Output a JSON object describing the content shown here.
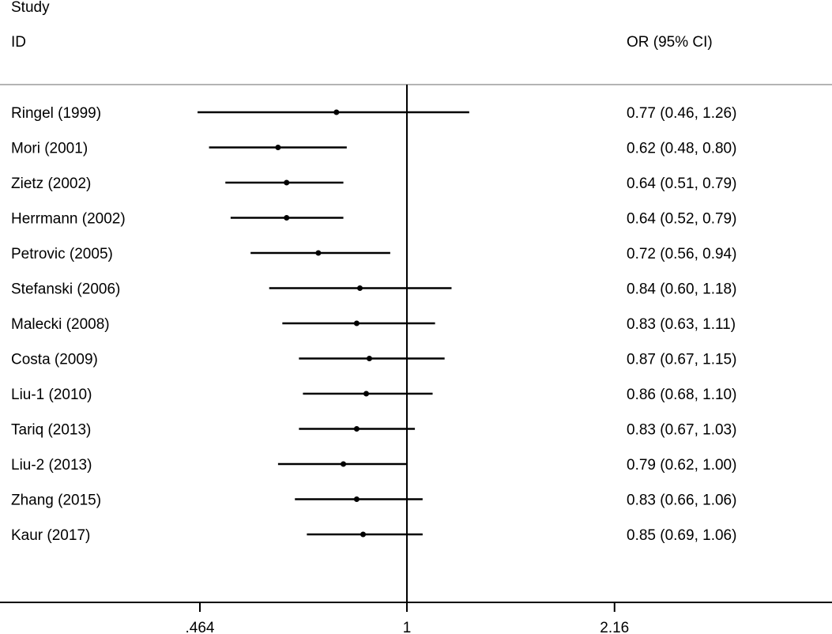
{
  "chart_data": {
    "type": "forest",
    "header": {
      "study_line1": "Study",
      "study_line2": "ID",
      "estimate_label": "OR (95% CI)"
    },
    "x_scale": "log",
    "xlim": [
      0.464,
      2.16
    ],
    "xticks": [
      0.464,
      1,
      2.16
    ],
    "xtick_labels": [
      ".464",
      "1",
      "2.16"
    ],
    "reference_line": 1,
    "studies": [
      {
        "label": "Ringel (1999)",
        "or": 0.77,
        "lo": 0.46,
        "hi": 1.26,
        "text": "0.77 (0.46, 1.26)"
      },
      {
        "label": "Mori (2001)",
        "or": 0.62,
        "lo": 0.48,
        "hi": 0.8,
        "text": "0.62 (0.48, 0.80)"
      },
      {
        "label": "Zietz (2002)",
        "or": 0.64,
        "lo": 0.51,
        "hi": 0.79,
        "text": "0.64 (0.51, 0.79)"
      },
      {
        "label": "Herrmann (2002)",
        "or": 0.64,
        "lo": 0.52,
        "hi": 0.79,
        "text": "0.64 (0.52, 0.79)"
      },
      {
        "label": "Petrovic (2005)",
        "or": 0.72,
        "lo": 0.56,
        "hi": 0.94,
        "text": "0.72 (0.56, 0.94)"
      },
      {
        "label": "Stefanski (2006)",
        "or": 0.84,
        "lo": 0.6,
        "hi": 1.18,
        "text": "0.84 (0.60, 1.18)"
      },
      {
        "label": "Malecki (2008)",
        "or": 0.83,
        "lo": 0.63,
        "hi": 1.11,
        "text": "0.83 (0.63, 1.11)"
      },
      {
        "label": "Costa (2009)",
        "or": 0.87,
        "lo": 0.67,
        "hi": 1.15,
        "text": "0.87 (0.67, 1.15)"
      },
      {
        "label": "Liu-1 (2010)",
        "or": 0.86,
        "lo": 0.68,
        "hi": 1.1,
        "text": "0.86 (0.68, 1.10)"
      },
      {
        "label": "Tariq (2013)",
        "or": 0.83,
        "lo": 0.67,
        "hi": 1.03,
        "text": "0.83 (0.67, 1.03)"
      },
      {
        "label": "Liu-2 (2013)",
        "or": 0.79,
        "lo": 0.62,
        "hi": 1.0,
        "text": "0.79 (0.62, 1.00)"
      },
      {
        "label": "Zhang (2015)",
        "or": 0.83,
        "lo": 0.66,
        "hi": 1.06,
        "text": "0.83 (0.66, 1.06)"
      },
      {
        "label": "Kaur (2017)",
        "or": 0.85,
        "lo": 0.69,
        "hi": 1.06,
        "text": "0.85 (0.69, 1.06)"
      }
    ],
    "colors": {
      "ink": "#000000",
      "header_rule": "#b4b4b4"
    }
  }
}
